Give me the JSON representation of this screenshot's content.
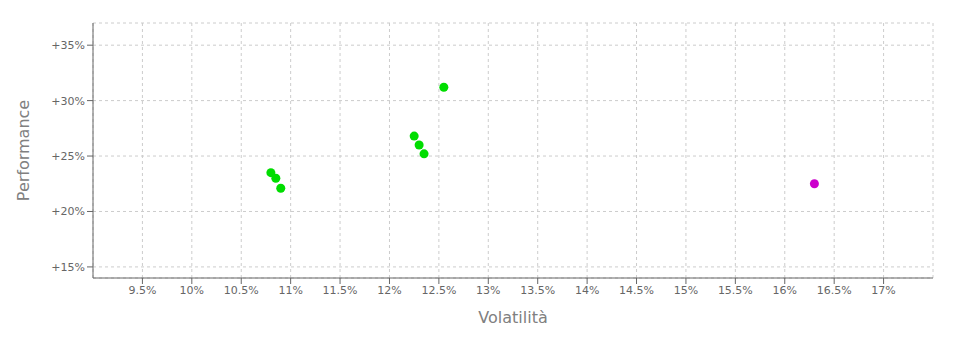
{
  "chart_data": {
    "type": "scatter",
    "xlabel": "Volatilità",
    "ylabel": "Performance",
    "xlim": [
      0.09,
      0.175
    ],
    "ylim": [
      0.14,
      0.37
    ],
    "xticks": [
      {
        "value": 0.095,
        "label": "9.5%"
      },
      {
        "value": 0.1,
        "label": "10%"
      },
      {
        "value": 0.105,
        "label": "10.5%"
      },
      {
        "value": 0.11,
        "label": "11%"
      },
      {
        "value": 0.115,
        "label": "11.5%"
      },
      {
        "value": 0.12,
        "label": "12%"
      },
      {
        "value": 0.125,
        "label": "12.5%"
      },
      {
        "value": 0.13,
        "label": "13%"
      },
      {
        "value": 0.135,
        "label": "13.5%"
      },
      {
        "value": 0.14,
        "label": "14%"
      },
      {
        "value": 0.145,
        "label": "14.5%"
      },
      {
        "value": 0.15,
        "label": "15%"
      },
      {
        "value": 0.155,
        "label": "15.5%"
      },
      {
        "value": 0.16,
        "label": "16%"
      },
      {
        "value": 0.165,
        "label": "16.5%"
      },
      {
        "value": 0.17,
        "label": "17%"
      }
    ],
    "yticks": [
      {
        "value": 0.15,
        "label": "+15%"
      },
      {
        "value": 0.2,
        "label": "+20%"
      },
      {
        "value": 0.25,
        "label": "+25%"
      },
      {
        "value": 0.3,
        "label": "+30%"
      },
      {
        "value": 0.35,
        "label": "+35%"
      }
    ],
    "grid": true,
    "series": [
      {
        "color": "#00dd00",
        "x": [
          0.108,
          0.1085,
          0.109,
          0.1225,
          0.123,
          0.1235,
          0.1255
        ],
        "values": [
          0.235,
          0.23,
          0.221,
          0.268,
          0.26,
          0.252,
          0.312
        ]
      },
      {
        "color": "#cc00cc",
        "x": [
          0.163
        ],
        "values": [
          0.225
        ]
      }
    ]
  }
}
